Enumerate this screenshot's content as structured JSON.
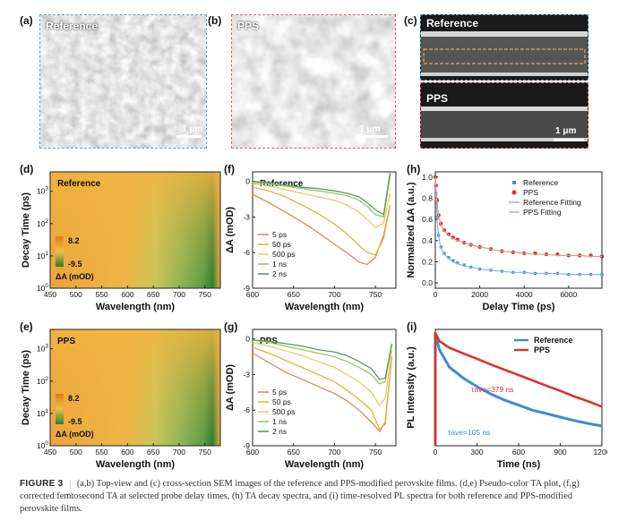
{
  "panels": {
    "a": {
      "label": "(a)",
      "title": "Reference",
      "scale": "1 μm"
    },
    "b": {
      "label": "(b)",
      "title": "PPS",
      "scale": "1 μm"
    },
    "c": {
      "label": "(c)",
      "title_top": "Reference",
      "title_bottom": "PPS",
      "scale": "1 μm"
    },
    "d": {
      "label": "(d)"
    },
    "e": {
      "label": "(e)"
    },
    "f": {
      "label": "(f)"
    },
    "g": {
      "label": "(g)"
    },
    "h": {
      "label": "(h)"
    },
    "i": {
      "label": "(i)"
    }
  },
  "caption": {
    "figure": "FIGURE 3",
    "sep": "|",
    "text": "(a,b) Top-view and (c) cross-section SEM images of the reference and PPS-modified perovskite films. (d,e) Pseudo-color TA plot, (f,g) corrected femtosecond TA at selected probe delay times, (h) TA decay spectra, and (i) time-resolved PL spectra for both reference and PPS-modified perovskite films."
  },
  "colors": {
    "reference_blue": "#3b8ed0",
    "pps_red": "#d9342b",
    "ta_5ps": "#e08a55",
    "ta_50ps": "#e8b23a",
    "ta_500ps": "#e9cc6a",
    "ta_1ns": "#9cc46a",
    "ta_2ns": "#5a9a57",
    "map_high": "#f0b23a",
    "map_low": "#3a8a3a"
  },
  "chart_data": [
    {
      "id": "d",
      "type": "heatmap",
      "title": "Reference",
      "xlabel": "Wavelength (nm)",
      "ylabel": "Decay Time (ps)",
      "xticks": [
        "450",
        "500",
        "550",
        "600",
        "650",
        "700",
        "750"
      ],
      "yticks": [
        "10^0",
        "10^1",
        "10^2",
        "10^3"
      ],
      "xlim": [
        450,
        780
      ],
      "ylog": true,
      "colorbar": {
        "max": "8.2",
        "min": "-9.5",
        "label": "ΔA (mOD)"
      }
    },
    {
      "id": "e",
      "type": "heatmap",
      "title": "PPS",
      "xlabel": "Wavelength (nm)",
      "ylabel": "Decay Time (ps)",
      "xticks": [
        "450",
        "500",
        "550",
        "600",
        "650",
        "700",
        "750"
      ],
      "yticks": [
        "10^0",
        "10^1",
        "10^2",
        "10^3"
      ],
      "xlim": [
        450,
        780
      ],
      "ylog": true,
      "colorbar": {
        "max": "8.2",
        "min": "-9.5",
        "label": "ΔA (mOD)"
      }
    },
    {
      "id": "f",
      "type": "line",
      "title": "Reference",
      "xlabel": "Wavelength (nm)",
      "ylabel": "ΔA (mOD)",
      "xlim": [
        600,
        775
      ],
      "ylim": [
        -9,
        0.8
      ],
      "xticks": [
        600,
        650,
        700,
        750
      ],
      "yticks": [
        0,
        -3,
        -6,
        -9
      ],
      "legend": "bottom-left",
      "x": [
        600,
        620,
        640,
        660,
        680,
        700,
        715,
        730,
        740,
        750,
        760,
        768
      ],
      "series": [
        {
          "name": "5 ps",
          "values": [
            -1.1,
            -1.8,
            -2.6,
            -3.4,
            -4.3,
            -5.3,
            -6.0,
            -6.8,
            -7.0,
            -6.4,
            -4.5,
            -2.0
          ]
        },
        {
          "name": "50 ps",
          "values": [
            -0.5,
            -0.8,
            -1.3,
            -2.0,
            -2.7,
            -3.6,
            -4.4,
            -5.4,
            -6.0,
            -6.2,
            -4.8,
            -2.0
          ]
        },
        {
          "name": "500 ps",
          "values": [
            -0.2,
            -0.4,
            -0.7,
            -1.0,
            -1.3,
            -1.6,
            -2.0,
            -2.6,
            -3.2,
            -3.9,
            -3.5,
            -1.0
          ]
        },
        {
          "name": "1 ns",
          "values": [
            -0.1,
            -0.2,
            -0.4,
            -0.6,
            -0.8,
            -1.0,
            -1.2,
            -1.6,
            -2.1,
            -2.8,
            -3.0,
            0.5
          ]
        },
        {
          "name": "2 ns",
          "values": [
            0.0,
            -0.1,
            -0.3,
            -0.5,
            -0.6,
            -0.8,
            -1.0,
            -1.3,
            -1.8,
            -2.4,
            -2.8,
            0.8
          ]
        }
      ]
    },
    {
      "id": "g",
      "type": "line",
      "title": "PPS",
      "xlabel": "Wavelength (nm)",
      "ylabel": "ΔA (mOD)",
      "xlim": [
        600,
        775
      ],
      "ylim": [
        -9,
        0.8
      ],
      "xticks": [
        600,
        650,
        700,
        750
      ],
      "yticks": [
        0,
        -3,
        -6,
        -9
      ],
      "legend": "bottom-left",
      "x": [
        600,
        620,
        640,
        660,
        680,
        700,
        715,
        730,
        745,
        755,
        762,
        770
      ],
      "series": [
        {
          "name": "5 ps",
          "values": [
            -1.2,
            -2.0,
            -2.8,
            -3.4,
            -4.0,
            -4.6,
            -5.2,
            -6.0,
            -7.0,
            -7.8,
            -7.0,
            -1.5
          ]
        },
        {
          "name": "50 ps",
          "values": [
            -0.7,
            -1.2,
            -1.8,
            -2.4,
            -3.0,
            -3.6,
            -4.3,
            -5.1,
            -6.0,
            -7.6,
            -7.2,
            -1.5
          ]
        },
        {
          "name": "500 ps",
          "values": [
            -0.3,
            -0.6,
            -1.0,
            -1.4,
            -1.9,
            -2.4,
            -3.0,
            -3.6,
            -4.5,
            -5.6,
            -5.0,
            -1.0
          ]
        },
        {
          "name": "1 ns",
          "values": [
            -0.1,
            -0.3,
            -0.6,
            -0.9,
            -1.2,
            -1.5,
            -1.9,
            -2.4,
            -3.0,
            -3.8,
            -3.6,
            -0.5
          ]
        },
        {
          "name": "2 ns",
          "values": [
            -0.1,
            -0.2,
            -0.4,
            -0.6,
            -0.9,
            -1.1,
            -1.4,
            -1.9,
            -2.5,
            -3.4,
            -3.3,
            -0.4
          ]
        }
      ]
    },
    {
      "id": "h",
      "type": "scatter",
      "xlabel": "Delay Time (ps)",
      "ylabel": "Normalized ΔA (a.u.)",
      "xlim": [
        0,
        7500
      ],
      "ylim": [
        -0.05,
        1.05
      ],
      "xticks": [
        0,
        2000,
        4000,
        6000
      ],
      "yticks": [
        0.0,
        0.2,
        0.4,
        0.6,
        0.8,
        1.0
      ],
      "legend": "top-right",
      "x": [
        0,
        30,
        80,
        150,
        250,
        400,
        600,
        800,
        1000,
        1300,
        1600,
        2000,
        2500,
        3000,
        3500,
        4000,
        4500,
        5000,
        5500,
        6000,
        6500,
        7000,
        7500
      ],
      "series": [
        {
          "name": "Reference",
          "values": [
            1.0,
            0.85,
            0.62,
            0.45,
            0.34,
            0.28,
            0.24,
            0.21,
            0.19,
            0.17,
            0.15,
            0.13,
            0.12,
            0.11,
            0.1,
            0.1,
            0.09,
            0.09,
            0.09,
            0.08,
            0.08,
            0.08,
            0.08
          ]
        },
        {
          "name": "PPS",
          "values": [
            1.0,
            0.92,
            0.78,
            0.64,
            0.56,
            0.5,
            0.46,
            0.43,
            0.41,
            0.38,
            0.36,
            0.34,
            0.32,
            0.3,
            0.29,
            0.28,
            0.28,
            0.27,
            0.27,
            0.26,
            0.26,
            0.26,
            0.25
          ]
        },
        {
          "name": "Reference Fitting",
          "values": [
            1.0,
            0.83,
            0.6,
            0.44,
            0.33,
            0.27,
            0.23,
            0.2,
            0.18,
            0.16,
            0.15,
            0.13,
            0.12,
            0.11,
            0.1,
            0.1,
            0.09,
            0.09,
            0.09,
            0.08,
            0.08,
            0.08,
            0.08
          ]
        },
        {
          "name": "PPS Fitting",
          "values": [
            1.0,
            0.9,
            0.76,
            0.63,
            0.55,
            0.49,
            0.45,
            0.42,
            0.4,
            0.38,
            0.36,
            0.34,
            0.32,
            0.3,
            0.29,
            0.28,
            0.27,
            0.27,
            0.26,
            0.26,
            0.26,
            0.25,
            0.25
          ]
        }
      ]
    },
    {
      "id": "i",
      "type": "line",
      "xlabel": "Time (ns)",
      "ylabel": "PL Intensity (a.u.)",
      "xlim": [
        0,
        1200
      ],
      "xticks": [
        0,
        300,
        600,
        900,
        1200
      ],
      "ylog": true,
      "legend": "top-right",
      "x": [
        0,
        30,
        100,
        200,
        300,
        400,
        500,
        600,
        700,
        800,
        900,
        1000,
        1100,
        1200
      ],
      "series": [
        {
          "name": "Reference",
          "values": [
            1.0,
            0.35,
            0.12,
            0.06,
            0.035,
            0.022,
            0.015,
            0.011,
            0.008,
            0.0065,
            0.0052,
            0.0042,
            0.0035,
            0.003
          ]
        },
        {
          "name": "PPS",
          "values": [
            1.0,
            0.6,
            0.4,
            0.28,
            0.2,
            0.14,
            0.1,
            0.072,
            0.052,
            0.037,
            0.027,
            0.019,
            0.014,
            0.01
          ]
        }
      ],
      "annotations": [
        {
          "text": "τave=379 ns",
          "series": "PPS"
        },
        {
          "text": "τave=105 ns",
          "series": "Reference"
        }
      ]
    }
  ]
}
